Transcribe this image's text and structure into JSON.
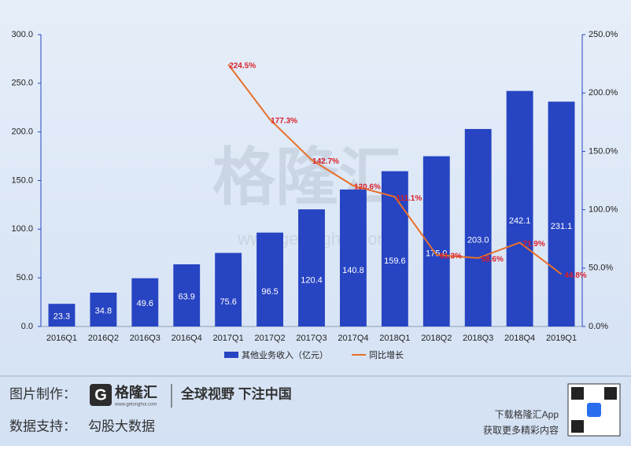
{
  "chart_data": {
    "type": "bar",
    "categories": [
      "2016Q1",
      "2016Q2",
      "2016Q3",
      "2016Q4",
      "2017Q1",
      "2017Q2",
      "2017Q3",
      "2017Q4",
      "2018Q1",
      "2018Q2",
      "2018Q3",
      "2018Q4",
      "2019Q1"
    ],
    "series": [
      {
        "name": "其他业务收入（亿元）",
        "color": "#2744c2",
        "type": "bar",
        "values": [
          23.3,
          34.8,
          49.6,
          63.9,
          75.6,
          96.5,
          120.4,
          140.8,
          159.6,
          175.0,
          203.0,
          242.1,
          231.1
        ],
        "value_labels": [
          "23.3",
          "34.8",
          "49.6",
          "63.9",
          "75.6",
          "96.5",
          "120.4",
          "140.8",
          "159.6",
          "175.0",
          "203.0",
          "242.1",
          "231.1"
        ]
      },
      {
        "name": "同比增长",
        "color": "#e8702a",
        "type": "line",
        "axis": "y2",
        "label_color": "#d9202a",
        "values": [
          null,
          null,
          null,
          null,
          224.5,
          177.3,
          142.7,
          120.6,
          111.1,
          61.3,
          58.6,
          71.9,
          44.8
        ],
        "value_labels": [
          null,
          null,
          null,
          null,
          "224.5%",
          "177.3%",
          "142.7%",
          "120.6%",
          "111.1%",
          "61.3%",
          "58.6%",
          "71.9%",
          "44.8%"
        ]
      }
    ],
    "ylim": [
      0,
      300
    ],
    "yticks": [
      {
        "value": 0,
        "label": "0.0"
      },
      {
        "value": 50,
        "label": "50.0"
      },
      {
        "value": 100,
        "label": "100.0"
      },
      {
        "value": 150,
        "label": "150.0"
      },
      {
        "value": 200,
        "label": "200.0"
      },
      {
        "value": 250,
        "label": "250.0"
      },
      {
        "value": 300,
        "label": "300.0"
      }
    ],
    "y2lim": [
      0,
      250
    ],
    "y2ticks": [
      {
        "value": 0,
        "label": "0.0%"
      },
      {
        "value": 50,
        "label": "50.0%"
      },
      {
        "value": 100,
        "label": "100.0%"
      },
      {
        "value": 150,
        "label": "150.0%"
      },
      {
        "value": 200,
        "label": "200.0%"
      },
      {
        "value": 250,
        "label": "250.0%"
      }
    ],
    "legend": "bottom",
    "grid": false,
    "watermark": "格隆汇",
    "watermark_url": "www.gelonghui.com"
  },
  "footer": {
    "made_by": "图片制作：",
    "logo": "格隆汇",
    "logo_url": "www.gelonghui.com",
    "slogan": "全球视野 下注中国",
    "data_by": "数据支持：",
    "data_source": "勾股大数据",
    "app_line1": "下载格隆汇App",
    "app_line2": "获取更多精彩内容"
  }
}
